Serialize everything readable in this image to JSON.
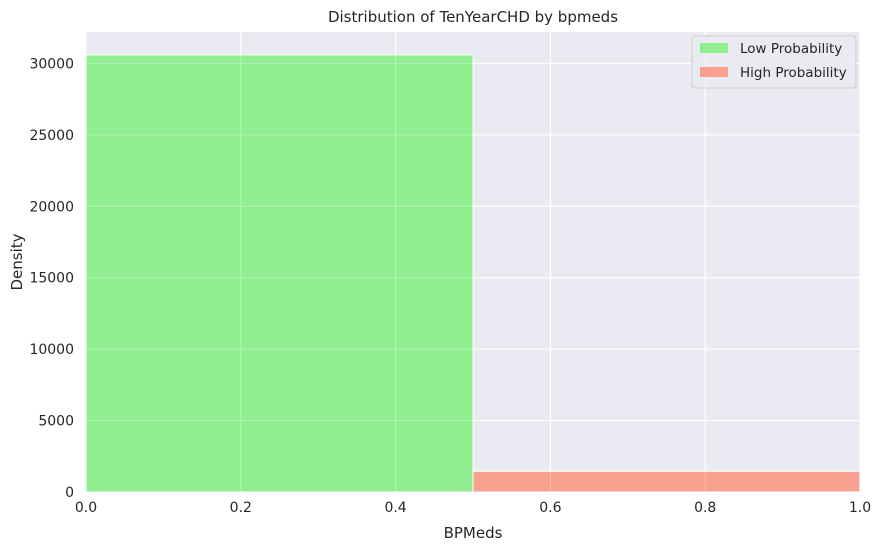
{
  "chart_data": {
    "type": "bar",
    "title": "Distribution of TenYearCHD by bpmeds",
    "xlabel": "BPMeds",
    "ylabel": "Density",
    "xlim": [
      0.0,
      1.0
    ],
    "ylim": [
      0,
      32200
    ],
    "xticks": [
      "0.0",
      "0.2",
      "0.4",
      "0.6",
      "0.8",
      "1.0"
    ],
    "yticks": [
      "0",
      "5000",
      "10000",
      "15000",
      "20000",
      "25000",
      "30000"
    ],
    "grid": true,
    "legend_position": "top-right",
    "series": [
      {
        "name": "Low Probability",
        "color": "#90ee90",
        "bins": [
          {
            "x0": 0.0,
            "x1": 0.5,
            "value": 30600
          }
        ]
      },
      {
        "name": "High Probability",
        "color": "#f8a090",
        "bins": [
          {
            "x0": 0.5,
            "x1": 1.0,
            "value": 1450
          }
        ]
      }
    ]
  }
}
